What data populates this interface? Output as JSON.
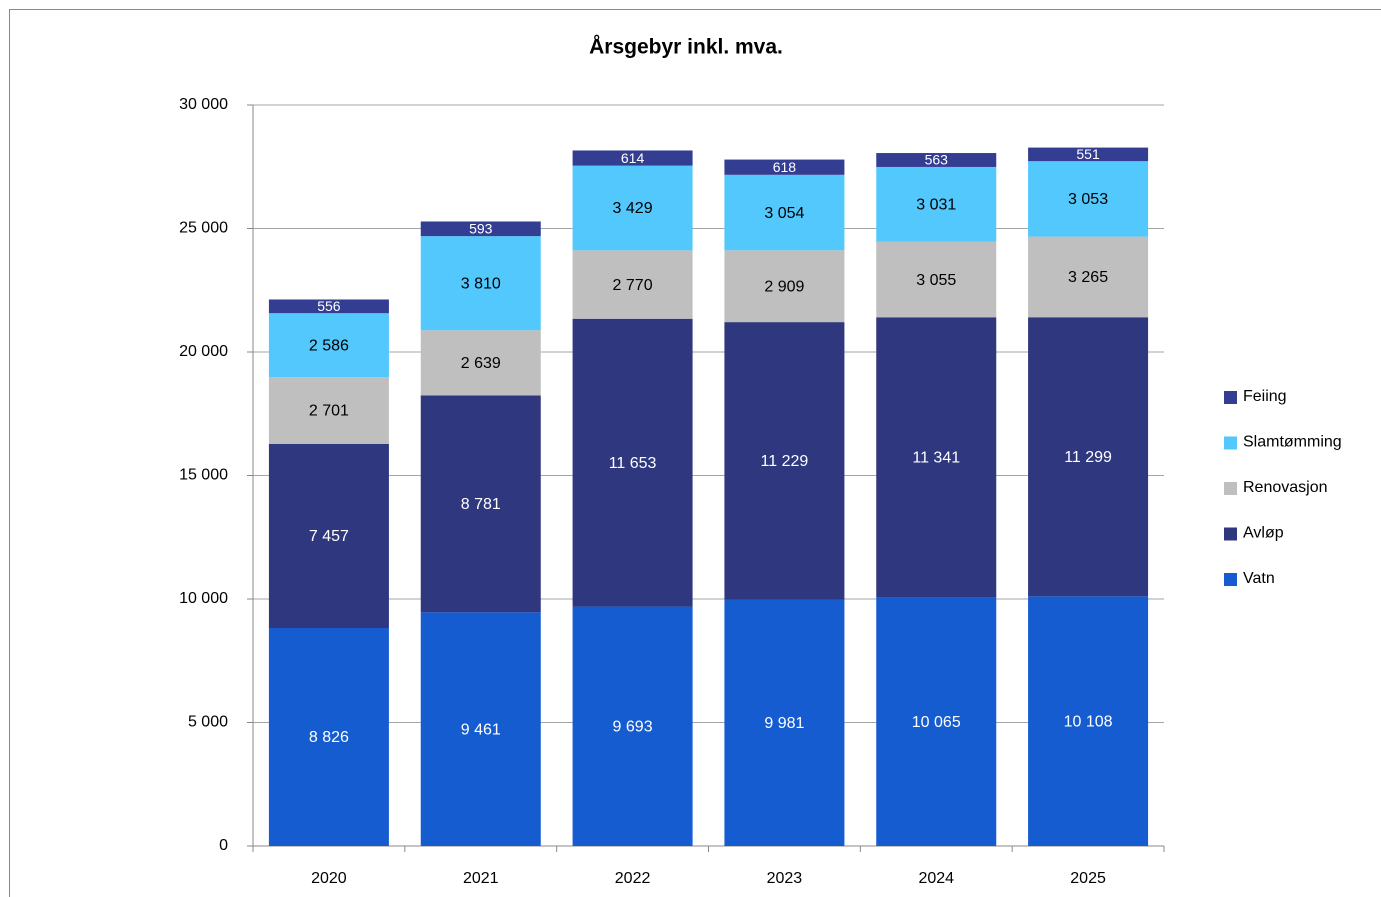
{
  "chart_data": {
    "type": "bar",
    "stacked": true,
    "title": "Årsgebyr inkl. mva.",
    "categories": [
      "2020",
      "2021",
      "2022",
      "2023",
      "2024",
      "2025"
    ],
    "series": [
      {
        "name": "Vatn",
        "color": "#155cd0",
        "values": [
          8826,
          9461,
          9693,
          9981,
          10065,
          10108
        ],
        "value_labels": [
          "8 826",
          "9 461",
          "9 693",
          "9 981",
          "10 065",
          "10 108"
        ]
      },
      {
        "name": "Avløp",
        "color": "#2f377e",
        "values": [
          7457,
          8781,
          11653,
          11229,
          11341,
          11299
        ],
        "value_labels": [
          "7 457",
          "8 781",
          "11 653",
          "11 229",
          "11 341",
          "11 299"
        ]
      },
      {
        "name": "Renovasjon",
        "color": "#bfbfbf",
        "values": [
          2701,
          2639,
          2770,
          2909,
          3055,
          3265
        ],
        "value_labels": [
          "2 701",
          "2 639",
          "2 770",
          "2 909",
          "3 055",
          "3 265"
        ]
      },
      {
        "name": "Slamtømming",
        "color": "#52c8fc",
        "values": [
          2586,
          3810,
          3429,
          3054,
          3031,
          3053
        ],
        "value_labels": [
          "2 586",
          "3 810",
          "3 429",
          "3 054",
          "3 031",
          "3 053"
        ]
      },
      {
        "name": "Feiing",
        "color": "#333d92",
        "values": [
          556,
          593,
          614,
          618,
          563,
          551
        ]
      }
    ],
    "ylim": [
      0,
      30000
    ],
    "yticks": [
      0,
      {
        "value": 5000,
        "label": "5 000"
      },
      {
        "value": 10000,
        "label": "10 000"
      },
      {
        "value": 15000,
        "label": "15 000"
      },
      {
        "value": 20000,
        "label": "20 000"
      },
      {
        "value": 25000,
        "label": "25 000"
      },
      {
        "value": 30000,
        "label": "30 000"
      }
    ],
    "grid": true,
    "legend": "right"
  }
}
